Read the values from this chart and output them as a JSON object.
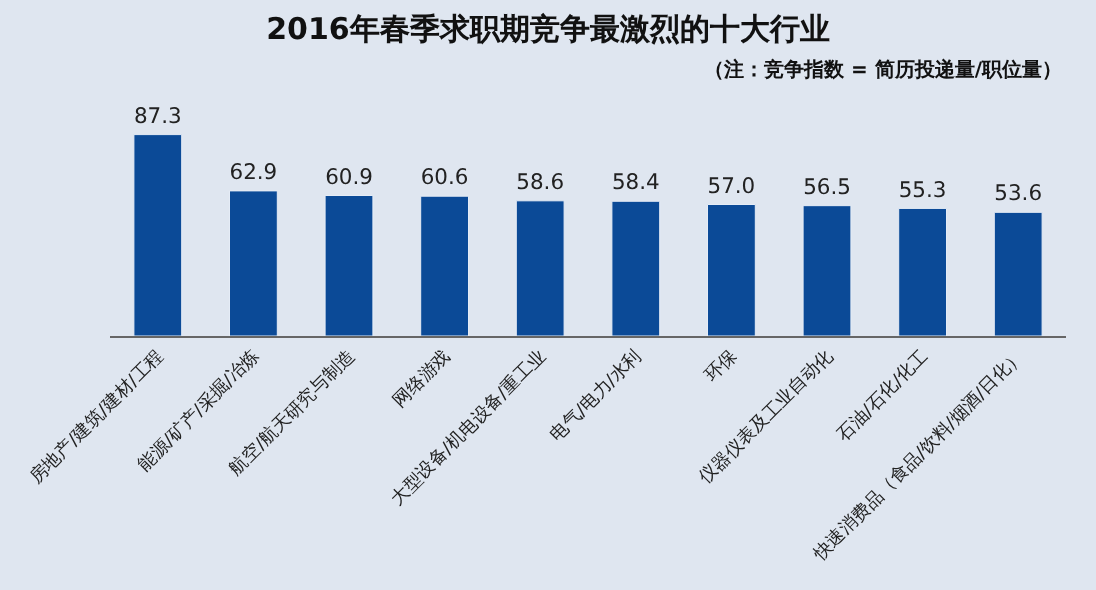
{
  "chart_data": {
    "type": "bar",
    "title": "2016年春季求职期竞争最激烈的十大行业",
    "subtitle": "（注：竞争指数 = 简历投递量/职位量）",
    "categories": [
      "房地产/建筑/建材/工程",
      "能源/矿产/采掘/冶炼",
      "航空/航天研究与制造",
      "网络游戏",
      "大型设备/机电设备/重工业",
      "电气/电力/水利",
      "环保",
      "仪器仪表及工业自动化",
      "石油/石化/化工",
      "快速消费品（食品/饮料/烟酒/日化）"
    ],
    "values": [
      87.3,
      62.9,
      60.9,
      60.6,
      58.6,
      58.4,
      57.0,
      56.5,
      55.3,
      53.6
    ],
    "value_labels": [
      "87.3",
      "62.9",
      "60.9",
      "60.6",
      "58.6",
      "58.4",
      "57.0",
      "56.5",
      "55.3",
      "53.6"
    ],
    "color": "#0b4a97",
    "grid": false,
    "legend": false
  }
}
